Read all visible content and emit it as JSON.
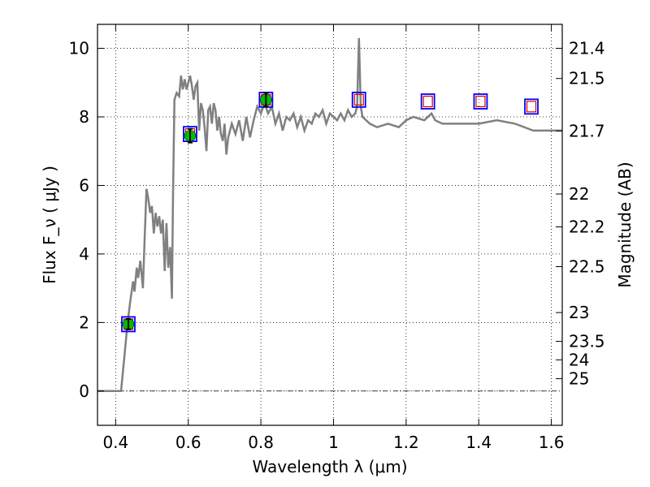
{
  "chart_data": {
    "type": "line",
    "xlabel": "Wavelength  λ (μm)",
    "ylabel": "Flux  F_ν  ( μJy )",
    "ylabel_right": "Magnitude (AB)",
    "xlim": [
      0.35,
      1.63
    ],
    "ylim": [
      -1.0,
      10.7
    ],
    "grid": true,
    "x_ticks": [
      0.4,
      0.6,
      0.8,
      1.0,
      1.2,
      1.4,
      1.6
    ],
    "x_tick_labels": [
      "0.4",
      "0.6",
      "0.8",
      "1",
      "1.2",
      "1.4",
      "1.6"
    ],
    "y_ticks": [
      0,
      2,
      4,
      6,
      8,
      10
    ],
    "y_tick_labels": [
      "0",
      "2",
      "4",
      "6",
      "8",
      "10"
    ],
    "right_ticks": [
      {
        "label": "21.4",
        "flux": 10.0
      },
      {
        "label": "21.5",
        "flux": 9.12
      },
      {
        "label": "21.7",
        "flux": 7.59
      },
      {
        "label": "22",
        "flux": 5.75
      },
      {
        "label": "22.2",
        "flux": 4.79
      },
      {
        "label": "22.5",
        "flux": 3.63
      },
      {
        "label": "23",
        "flux": 2.29
      },
      {
        "label": "23.5",
        "flux": 1.45
      },
      {
        "label": "24",
        "flux": 0.91
      },
      {
        "label": "25",
        "flux": 0.36
      }
    ],
    "colors": {
      "model": "#808080",
      "observed_fill": "#00bb00",
      "box": "#0000ff",
      "model_phot": "#dd0000",
      "zero_line": "#000000"
    },
    "series": [
      {
        "kind": "model_spectrum",
        "x": [
          0.35,
          0.415,
          0.425,
          0.432,
          0.44,
          0.448,
          0.452,
          0.458,
          0.462,
          0.468,
          0.475,
          0.48,
          0.485,
          0.49,
          0.495,
          0.5,
          0.505,
          0.51,
          0.515,
          0.52,
          0.525,
          0.53,
          0.535,
          0.54,
          0.545,
          0.55,
          0.555,
          0.558,
          0.562,
          0.568,
          0.575,
          0.58,
          0.585,
          0.59,
          0.595,
          0.6,
          0.605,
          0.61,
          0.615,
          0.62,
          0.625,
          0.63,
          0.635,
          0.64,
          0.645,
          0.65,
          0.655,
          0.66,
          0.665,
          0.67,
          0.675,
          0.68,
          0.685,
          0.69,
          0.695,
          0.7,
          0.705,
          0.71,
          0.72,
          0.73,
          0.74,
          0.75,
          0.76,
          0.77,
          0.78,
          0.79,
          0.8,
          0.81,
          0.82,
          0.83,
          0.84,
          0.85,
          0.86,
          0.87,
          0.88,
          0.89,
          0.9,
          0.91,
          0.92,
          0.93,
          0.94,
          0.95,
          0.96,
          0.97,
          0.98,
          0.99,
          1.0,
          1.01,
          1.02,
          1.03,
          1.04,
          1.05,
          1.06,
          1.065,
          1.07,
          1.075,
          1.08,
          1.1,
          1.12,
          1.15,
          1.18,
          1.2,
          1.22,
          1.25,
          1.27,
          1.28,
          1.3,
          1.35,
          1.4,
          1.45,
          1.5,
          1.55,
          1.6,
          1.63
        ],
        "y": [
          0.0,
          0.0,
          1.1,
          1.9,
          2.6,
          3.2,
          2.9,
          3.6,
          3.3,
          3.8,
          3.0,
          4.5,
          5.9,
          5.6,
          5.2,
          5.4,
          4.6,
          5.2,
          4.8,
          5.1,
          4.6,
          5.0,
          3.5,
          4.9,
          3.6,
          4.2,
          2.7,
          5.8,
          8.5,
          8.7,
          8.6,
          9.2,
          8.8,
          9.1,
          8.8,
          9.0,
          9.2,
          8.9,
          8.5,
          8.9,
          9.0,
          7.6,
          8.4,
          8.2,
          7.7,
          7.0,
          8.2,
          8.3,
          7.8,
          8.4,
          8.2,
          7.6,
          8.0,
          7.5,
          7.3,
          7.8,
          6.9,
          7.4,
          7.8,
          7.5,
          7.9,
          7.3,
          8.0,
          7.4,
          7.9,
          8.3,
          8.1,
          8.4,
          8.1,
          8.3,
          7.8,
          8.1,
          7.6,
          8.0,
          7.9,
          8.1,
          7.7,
          8.0,
          7.6,
          7.9,
          7.8,
          8.1,
          8.0,
          8.2,
          7.8,
          8.1,
          8.0,
          7.9,
          8.1,
          7.9,
          8.2,
          8.0,
          8.1,
          8.3,
          10.3,
          8.3,
          8.0,
          7.8,
          7.7,
          7.8,
          7.7,
          7.9,
          8.0,
          7.9,
          8.1,
          7.9,
          7.8,
          7.8,
          7.8,
          7.9,
          7.8,
          7.6,
          7.6,
          7.6
        ]
      },
      {
        "kind": "observed",
        "x": [
          0.435,
          0.605,
          0.814
        ],
        "y": [
          1.95,
          7.45,
          8.5
        ],
        "err": [
          0.15,
          0.2,
          0.2
        ]
      },
      {
        "kind": "model_photometry",
        "x": [
          0.435,
          0.605,
          0.814,
          1.07,
          1.26,
          1.405,
          1.545
        ],
        "y": [
          1.95,
          7.5,
          8.5,
          8.5,
          8.45,
          8.45,
          8.3
        ]
      }
    ]
  }
}
